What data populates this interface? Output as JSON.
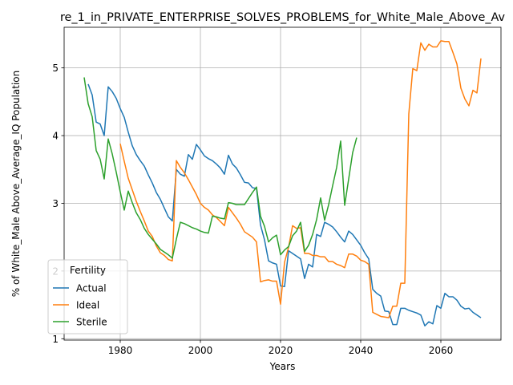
{
  "chart_data": {
    "type": "line",
    "title": "re_1_in_PRIVATE_ENTERPRISE_SOLVES_PROBLEMS_for_White_Male_Above_Av",
    "xlabel": "Years",
    "ylabel": "% of White_Male Above_Average_IQ Population",
    "xlim": [
      1966,
      2075
    ],
    "ylim": [
      0.98,
      5.6
    ],
    "xticks": [
      1980,
      2000,
      2020,
      2040,
      2060
    ],
    "yticks": [
      1,
      2,
      3,
      4,
      5
    ],
    "grid": true,
    "legend": {
      "title": "Fertility",
      "placement": "lower-left"
    },
    "series": [
      {
        "name": "Actual",
        "color": "#1f77b4",
        "points": [
          [
            1972,
            4.76
          ],
          [
            1973,
            4.6
          ],
          [
            1974,
            4.2
          ],
          [
            1975,
            4.17
          ],
          [
            1976,
            4.0
          ],
          [
            1977,
            4.72
          ],
          [
            1978,
            4.65
          ],
          [
            1979,
            4.55
          ],
          [
            1980,
            4.4
          ],
          [
            1981,
            4.27
          ],
          [
            1982,
            4.05
          ],
          [
            1983,
            3.85
          ],
          [
            1984,
            3.72
          ],
          [
            1985,
            3.63
          ],
          [
            1986,
            3.55
          ],
          [
            1987,
            3.42
          ],
          [
            1988,
            3.3
          ],
          [
            1989,
            3.16
          ],
          [
            1990,
            3.06
          ],
          [
            1991,
            2.93
          ],
          [
            1992,
            2.8
          ],
          [
            1993,
            2.74
          ],
          [
            1994,
            3.5
          ],
          [
            1995,
            3.43
          ],
          [
            1996,
            3.4
          ],
          [
            1997,
            3.72
          ],
          [
            1998,
            3.65
          ],
          [
            1999,
            3.87
          ],
          [
            2000,
            3.79
          ],
          [
            2001,
            3.7
          ],
          [
            2002,
            3.66
          ],
          [
            2003,
            3.63
          ],
          [
            2004,
            3.58
          ],
          [
            2005,
            3.52
          ],
          [
            2006,
            3.43
          ],
          [
            2007,
            3.71
          ],
          [
            2008,
            3.58
          ],
          [
            2009,
            3.52
          ],
          [
            2010,
            3.42
          ],
          [
            2011,
            3.31
          ],
          [
            2012,
            3.3
          ],
          [
            2013,
            3.23
          ],
          [
            2014,
            3.22
          ],
          [
            2015,
            2.68
          ],
          [
            2016,
            2.46
          ],
          [
            2017,
            2.15
          ],
          [
            2018,
            2.12
          ],
          [
            2019,
            2.1
          ],
          [
            2020,
            1.78
          ],
          [
            2021,
            1.77
          ],
          [
            2022,
            2.3
          ],
          [
            2023,
            2.26
          ],
          [
            2024,
            2.22
          ],
          [
            2025,
            2.18
          ],
          [
            2026,
            1.89
          ],
          [
            2027,
            2.1
          ],
          [
            2028,
            2.06
          ],
          [
            2029,
            2.54
          ],
          [
            2030,
            2.51
          ],
          [
            2031,
            2.72
          ],
          [
            2032,
            2.69
          ],
          [
            2033,
            2.65
          ],
          [
            2034,
            2.58
          ],
          [
            2035,
            2.5
          ],
          [
            2036,
            2.43
          ],
          [
            2037,
            2.59
          ],
          [
            2038,
            2.54
          ],
          [
            2039,
            2.46
          ],
          [
            2040,
            2.38
          ],
          [
            2041,
            2.27
          ],
          [
            2042,
            2.18
          ],
          [
            2043,
            1.73
          ],
          [
            2044,
            1.67
          ],
          [
            2045,
            1.63
          ],
          [
            2046,
            1.41
          ],
          [
            2047,
            1.4
          ],
          [
            2048,
            1.21
          ],
          [
            2049,
            1.21
          ],
          [
            2050,
            1.45
          ],
          [
            2051,
            1.45
          ],
          [
            2052,
            1.42
          ],
          [
            2053,
            1.4
          ],
          [
            2054,
            1.38
          ],
          [
            2055,
            1.35
          ],
          [
            2056,
            1.19
          ],
          [
            2057,
            1.25
          ],
          [
            2058,
            1.22
          ],
          [
            2059,
            1.49
          ],
          [
            2060,
            1.45
          ],
          [
            2061,
            1.67
          ],
          [
            2062,
            1.62
          ],
          [
            2063,
            1.62
          ],
          [
            2064,
            1.57
          ],
          [
            2065,
            1.48
          ],
          [
            2066,
            1.44
          ],
          [
            2067,
            1.45
          ],
          [
            2068,
            1.39
          ],
          [
            2069,
            1.35
          ],
          [
            2070,
            1.31
          ]
        ]
      },
      {
        "name": "Ideal",
        "color": "#ff7f0e",
        "points": [
          [
            1980,
            3.88
          ],
          [
            1981,
            3.62
          ],
          [
            1982,
            3.37
          ],
          [
            1983,
            3.2
          ],
          [
            1984,
            3.03
          ],
          [
            1985,
            2.88
          ],
          [
            1986,
            2.74
          ],
          [
            1987,
            2.59
          ],
          [
            1988,
            2.51
          ],
          [
            1989,
            2.37
          ],
          [
            1990,
            2.27
          ],
          [
            1991,
            2.23
          ],
          [
            1992,
            2.17
          ],
          [
            1993,
            2.15
          ],
          [
            1994,
            3.63
          ],
          [
            1995,
            3.53
          ],
          [
            1996,
            3.45
          ],
          [
            1997,
            3.35
          ],
          [
            1998,
            3.24
          ],
          [
            1999,
            3.13
          ],
          [
            2000,
            3.0
          ],
          [
            2001,
            2.94
          ],
          [
            2002,
            2.9
          ],
          [
            2003,
            2.83
          ],
          [
            2004,
            2.79
          ],
          [
            2005,
            2.73
          ],
          [
            2006,
            2.67
          ],
          [
            2007,
            2.94
          ],
          [
            2008,
            2.86
          ],
          [
            2009,
            2.78
          ],
          [
            2010,
            2.69
          ],
          [
            2011,
            2.58
          ],
          [
            2012,
            2.54
          ],
          [
            2013,
            2.5
          ],
          [
            2014,
            2.43
          ],
          [
            2015,
            1.84
          ],
          [
            2016,
            1.86
          ],
          [
            2017,
            1.87
          ],
          [
            2018,
            1.85
          ],
          [
            2019,
            1.85
          ],
          [
            2020,
            1.51
          ],
          [
            2021,
            2.13
          ],
          [
            2022,
            2.35
          ],
          [
            2023,
            2.67
          ],
          [
            2024,
            2.63
          ],
          [
            2025,
            2.64
          ],
          [
            2026,
            2.26
          ],
          [
            2027,
            2.26
          ],
          [
            2028,
            2.23
          ],
          [
            2029,
            2.23
          ],
          [
            2030,
            2.21
          ],
          [
            2031,
            2.21
          ],
          [
            2032,
            2.14
          ],
          [
            2033,
            2.14
          ],
          [
            2034,
            2.1
          ],
          [
            2035,
            2.08
          ],
          [
            2036,
            2.05
          ],
          [
            2037,
            2.25
          ],
          [
            2038,
            2.25
          ],
          [
            2039,
            2.22
          ],
          [
            2040,
            2.16
          ],
          [
            2041,
            2.14
          ],
          [
            2042,
            2.1
          ],
          [
            2043,
            1.39
          ],
          [
            2044,
            1.36
          ],
          [
            2045,
            1.33
          ],
          [
            2046,
            1.32
          ],
          [
            2047,
            1.31
          ],
          [
            2048,
            1.48
          ],
          [
            2049,
            1.48
          ],
          [
            2050,
            1.82
          ],
          [
            2051,
            1.82
          ],
          [
            2052,
            4.32
          ],
          [
            2053,
            4.99
          ],
          [
            2054,
            4.96
          ],
          [
            2055,
            5.37
          ],
          [
            2056,
            5.26
          ],
          [
            2057,
            5.35
          ],
          [
            2058,
            5.31
          ],
          [
            2059,
            5.31
          ],
          [
            2060,
            5.4
          ],
          [
            2061,
            5.39
          ],
          [
            2062,
            5.39
          ],
          [
            2063,
            5.23
          ],
          [
            2064,
            5.06
          ],
          [
            2065,
            4.7
          ],
          [
            2066,
            4.54
          ],
          [
            2067,
            4.44
          ],
          [
            2068,
            4.67
          ],
          [
            2069,
            4.63
          ],
          [
            2070,
            5.14
          ]
        ]
      },
      {
        "name": "Sterile",
        "color": "#2ca02c",
        "points": [
          [
            1971,
            4.86
          ],
          [
            1972,
            4.47
          ],
          [
            1973,
            4.28
          ],
          [
            1974,
            3.78
          ],
          [
            1975,
            3.65
          ],
          [
            1976,
            3.36
          ],
          [
            1977,
            3.95
          ],
          [
            1978,
            3.73
          ],
          [
            1979,
            3.46
          ],
          [
            1980,
            3.17
          ],
          [
            1981,
            2.9
          ],
          [
            1982,
            3.18
          ],
          [
            1983,
            3.01
          ],
          [
            1984,
            2.86
          ],
          [
            1985,
            2.76
          ],
          [
            1986,
            2.63
          ],
          [
            1987,
            2.54
          ],
          [
            1988,
            2.47
          ],
          [
            1989,
            2.4
          ],
          [
            1990,
            2.32
          ],
          [
            1991,
            2.28
          ],
          [
            1992,
            2.24
          ],
          [
            1993,
            2.19
          ],
          [
            1994,
            2.47
          ],
          [
            1995,
            2.72
          ],
          [
            1996,
            2.7
          ],
          [
            1997,
            2.67
          ],
          [
            1998,
            2.64
          ],
          [
            1999,
            2.62
          ],
          [
            2000,
            2.59
          ],
          [
            2001,
            2.57
          ],
          [
            2002,
            2.56
          ],
          [
            2003,
            2.81
          ],
          [
            2004,
            2.8
          ],
          [
            2005,
            2.78
          ],
          [
            2006,
            2.77
          ],
          [
            2007,
            3.01
          ],
          [
            2008,
            3.0
          ],
          [
            2009,
            2.98
          ],
          [
            2010,
            2.98
          ],
          [
            2011,
            2.98
          ],
          [
            2012,
            3.07
          ],
          [
            2013,
            3.16
          ],
          [
            2014,
            3.24
          ],
          [
            2015,
            2.81
          ],
          [
            2016,
            2.66
          ],
          [
            2017,
            2.43
          ],
          [
            2018,
            2.49
          ],
          [
            2019,
            2.53
          ],
          [
            2020,
            2.24
          ],
          [
            2021,
            2.31
          ],
          [
            2022,
            2.36
          ],
          [
            2023,
            2.52
          ],
          [
            2024,
            2.59
          ],
          [
            2025,
            2.72
          ],
          [
            2026,
            2.29
          ],
          [
            2027,
            2.38
          ],
          [
            2028,
            2.54
          ],
          [
            2029,
            2.76
          ],
          [
            2030,
            3.08
          ],
          [
            2031,
            2.75
          ],
          [
            2032,
            2.98
          ],
          [
            2033,
            3.26
          ],
          [
            2034,
            3.53
          ],
          [
            2035,
            3.92
          ],
          [
            2036,
            2.97
          ],
          [
            2037,
            3.36
          ],
          [
            2038,
            3.75
          ],
          [
            2039,
            3.97
          ]
        ]
      }
    ]
  }
}
